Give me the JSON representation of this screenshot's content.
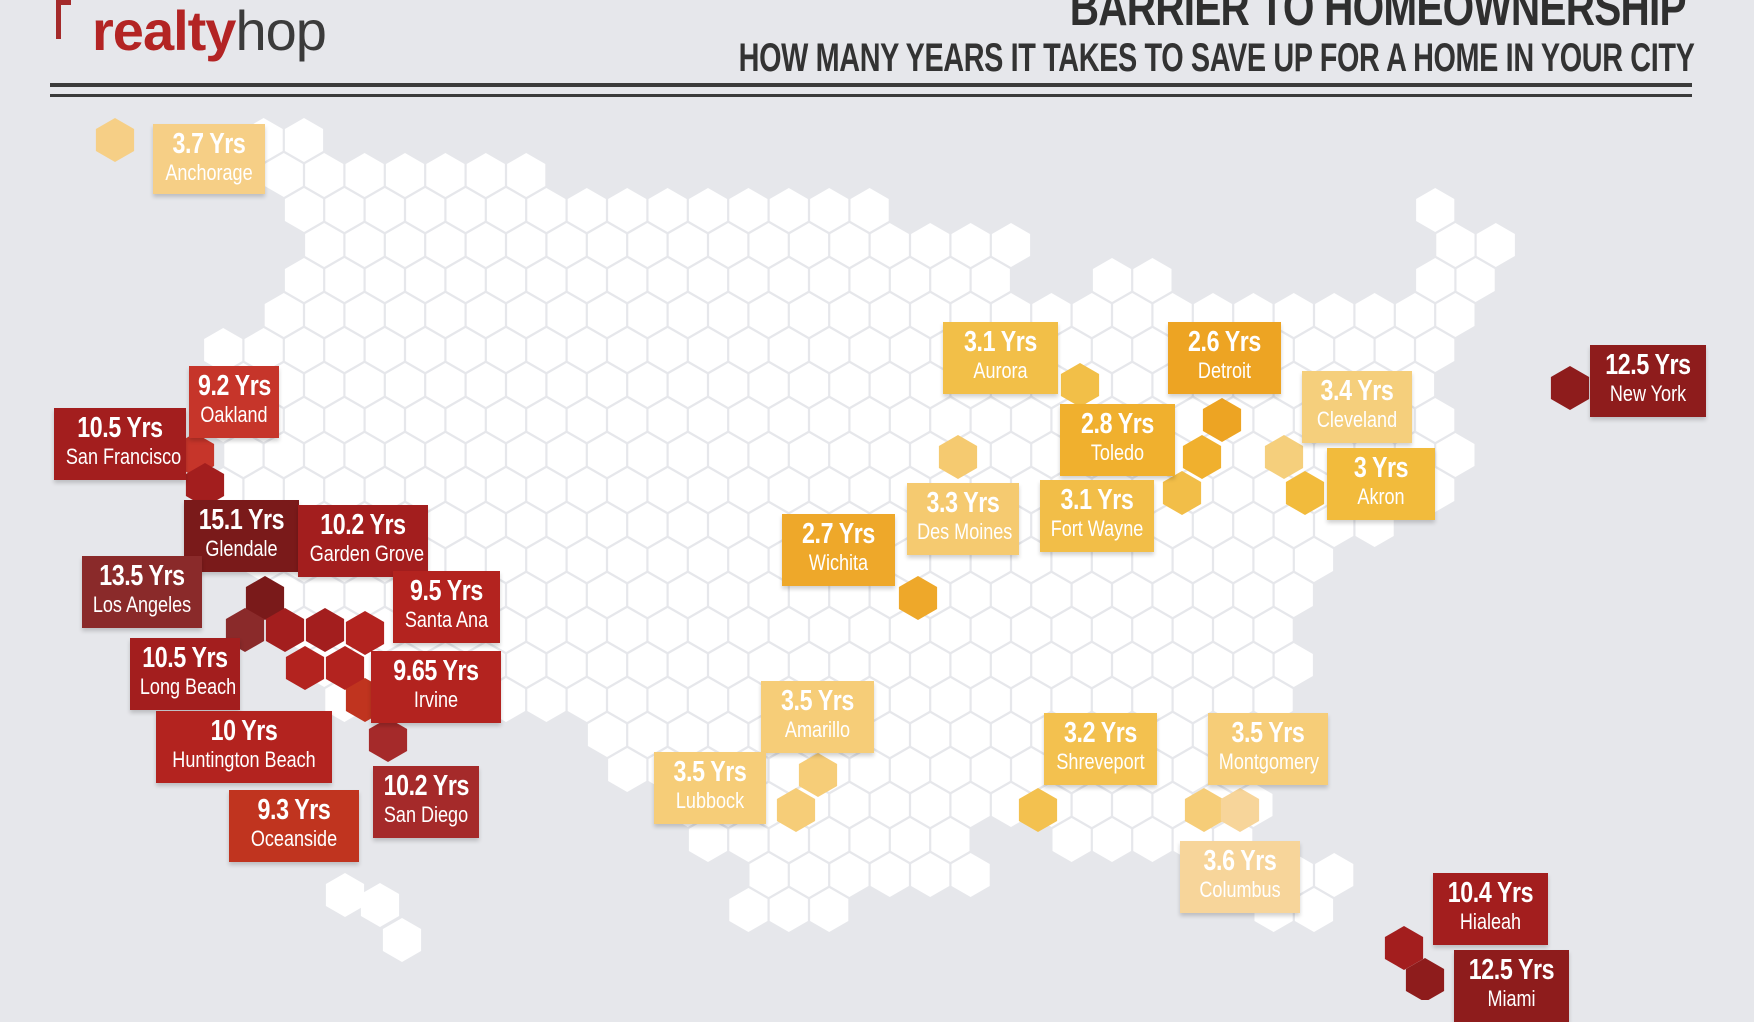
{
  "brand": {
    "realty": "realty",
    "hop": "hop"
  },
  "title": "BARRIER TO HOMEOWNERSHIP",
  "subtitle": "HOW MANY YEARS IT TAKES TO SAVE UP FOR A HOME IN YOUR CITY",
  "colors": {
    "background": "#e6e7eb",
    "hex_empty": "#ffffff",
    "light_yellow": "#f6cf86",
    "yellow": "#f2be46",
    "orange": "#f0aa2e",
    "dark_orange": "#eba024",
    "red": "#b3231f",
    "dark_red": "#8a1a1a",
    "maroon": "#7a1f1f"
  },
  "cities": [
    {
      "name": "Anchorage",
      "years": "3.7 Yrs",
      "color": "#f6cf86"
    },
    {
      "name": "Oakland",
      "years": "9.2 Yrs",
      "color": "#c6352a"
    },
    {
      "name": "San Francisco",
      "years": "10.5 Yrs",
      "color": "#a31e1e"
    },
    {
      "name": "Glendale",
      "years": "15.1 Yrs",
      "color": "#7a1a1a"
    },
    {
      "name": "Garden Grove",
      "years": "10.2 Yrs",
      "color": "#a31e1e"
    },
    {
      "name": "Los Angeles",
      "years": "13.5 Yrs",
      "color": "#8a2a2a"
    },
    {
      "name": "Santa Ana",
      "years": "9.5 Yrs",
      "color": "#b3231f"
    },
    {
      "name": "Long Beach",
      "years": "10.5 Yrs",
      "color": "#a31e1e"
    },
    {
      "name": "Irvine",
      "years": "9.65 Yrs",
      "color": "#b3231f"
    },
    {
      "name": "Huntington Beach",
      "years": "10 Yrs",
      "color": "#b3231f"
    },
    {
      "name": "San Diego",
      "years": "10.2 Yrs",
      "color": "#a52a2a"
    },
    {
      "name": "Oceanside",
      "years": "9.3 Yrs",
      "color": "#c0341f"
    },
    {
      "name": "Aurora",
      "years": "3.1 Yrs",
      "color": "#f2bf48"
    },
    {
      "name": "Detroit",
      "years": "2.6 Yrs",
      "color": "#eda423"
    },
    {
      "name": "Cleveland",
      "years": "3.4 Yrs",
      "color": "#f5cf7c"
    },
    {
      "name": "Toledo",
      "years": "2.8 Yrs",
      "color": "#f0b02e"
    },
    {
      "name": "Akron",
      "years": "3 Yrs",
      "color": "#f2bb3c"
    },
    {
      "name": "Des Moines",
      "years": "3.3 Yrs",
      "color": "#f5ca70"
    },
    {
      "name": "Fort Wayne",
      "years": "3.1 Yrs",
      "color": "#f2be48"
    },
    {
      "name": "Wichita",
      "years": "2.7 Yrs",
      "color": "#eea82a"
    },
    {
      "name": "New York",
      "years": "12.5 Yrs",
      "color": "#8e1c1c"
    },
    {
      "name": "Amarillo",
      "years": "3.5 Yrs",
      "color": "#f6cd78"
    },
    {
      "name": "Lubbock",
      "years": "3.5 Yrs",
      "color": "#f6cd78"
    },
    {
      "name": "Shreveport",
      "years": "3.2 Yrs",
      "color": "#f3c14f"
    },
    {
      "name": "Montgomery",
      "years": "3.5 Yrs",
      "color": "#f6cd78"
    },
    {
      "name": "Columbus",
      "years": "3.6 Yrs",
      "color": "#f7d59a"
    },
    {
      "name": "Hialeah",
      "years": "10.4 Yrs",
      "color": "#a31e1e"
    },
    {
      "name": "Miami",
      "years": "12.5 Yrs",
      "color": "#8e1c1c"
    }
  ]
}
